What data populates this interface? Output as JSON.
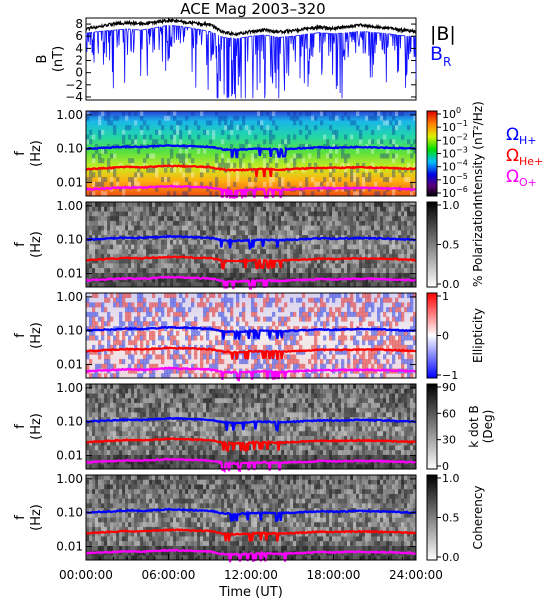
{
  "title": "ACE Mag 2003–320",
  "xaxis": {
    "label": "Time (UT)",
    "ticks": [
      "00:00:00",
      "06:00:00",
      "12:00:00",
      "18:00:00",
      "24:00:00"
    ],
    "range_hours": [
      0,
      24
    ]
  },
  "colors": {
    "b_total": "#000000",
    "b_r": "#1010ff",
    "h_plus": "#0000ff",
    "he_plus": "#ff0000",
    "o_plus": "#ff00ff"
  },
  "freq_ticks": [
    "1.00",
    "0.10",
    "0.01"
  ],
  "panels": {
    "bfield": {
      "ylabel": [
        "B",
        "(nT)"
      ],
      "yticks": [
        "8",
        "6",
        "4",
        "2",
        "0",
        "−2",
        "−4"
      ],
      "ylim": [
        -4.5,
        9
      ],
      "legend": {
        "b_total": "|B|",
        "b_r_main": "B",
        "b_r_sub": "R"
      }
    },
    "intensity": {
      "ylabel": [
        "f",
        "(Hz)"
      ],
      "cbar_label": "Intensity (nT²/Hz)",
      "cbar_ticks": [
        {
          "base": "10",
          "exp": "0"
        },
        {
          "base": "10",
          "exp": "−1"
        },
        {
          "base": "10",
          "exp": "−2"
        },
        {
          "base": "10",
          "exp": "−3"
        },
        {
          "base": "10",
          "exp": "−4"
        },
        {
          "base": "10",
          "exp": "−5"
        },
        {
          "base": "10",
          "exp": "−6"
        }
      ],
      "gyro_legend": [
        {
          "main": "Ω",
          "sub": "H+",
          "color": "#0000ff"
        },
        {
          "main": "Ω",
          "sub": "He+",
          "color": "#ff0000"
        },
        {
          "main": "Ω",
          "sub": "O+",
          "color": "#ff00ff"
        }
      ]
    },
    "polarization": {
      "cbar_label": "% Polarization",
      "cbar_ticks": [
        "1.0",
        "0.5",
        "0.0"
      ]
    },
    "ellipticity": {
      "cbar_label": "Ellipticity",
      "cbar_ticks": [
        "1",
        "0",
        "−1"
      ]
    },
    "kdotb": {
      "cbar_label": [
        "k dot B",
        "(Deg)"
      ],
      "cbar_ticks": [
        "90",
        "60",
        "30",
        "0"
      ]
    },
    "coherency": {
      "cbar_label": "Coherency",
      "cbar_ticks": [
        "1.0",
        "0.5",
        "0.0"
      ]
    }
  },
  "chart_data": [
    {
      "type": "line",
      "title": "ACE Mag 2003–320",
      "x_hours": [
        0,
        1,
        2,
        3,
        4,
        5,
        6,
        7,
        8,
        9,
        10,
        11,
        12,
        13,
        14,
        15,
        16,
        17,
        18,
        19,
        20,
        21,
        22,
        23,
        24
      ],
      "series": [
        {
          "name": "|B|",
          "values": [
            7.2,
            7.6,
            8.0,
            8.2,
            8.0,
            8.3,
            8.6,
            8.4,
            8.1,
            7.9,
            6.6,
            6.4,
            6.8,
            7.0,
            6.7,
            6.9,
            7.2,
            7.5,
            7.3,
            7.6,
            7.8,
            7.5,
            7.3,
            7.0,
            6.8
          ]
        },
        {
          "name": "B_R",
          "values": [
            6.5,
            6.8,
            7.0,
            7.2,
            7.0,
            7.4,
            7.8,
            7.6,
            7.2,
            6.8,
            5.8,
            5.6,
            6.0,
            6.2,
            5.8,
            6.0,
            6.3,
            6.6,
            6.4,
            6.6,
            6.8,
            6.6,
            6.4,
            6.1,
            5.9
          ]
        }
      ],
      "ylabel": "B (nT)",
      "ylim": [
        -4.5,
        9
      ]
    },
    {
      "type": "line",
      "x_hours": [
        0,
        1,
        2,
        3,
        4,
        5,
        6,
        7,
        8,
        9,
        10,
        11,
        12,
        13,
        14,
        15,
        16,
        17,
        18,
        19,
        20,
        21,
        22,
        23,
        24
      ],
      "series": [
        {
          "name": "Ω H+",
          "values": [
            0.1,
            0.105,
            0.11,
            0.115,
            0.112,
            0.118,
            0.125,
            0.122,
            0.118,
            0.114,
            0.095,
            0.092,
            0.098,
            0.1,
            0.096,
            0.1,
            0.104,
            0.11,
            0.107,
            0.11,
            0.113,
            0.11,
            0.107,
            0.103,
            0.1
          ]
        },
        {
          "name": "Ω He+",
          "values": [
            0.025,
            0.026,
            0.0275,
            0.029,
            0.028,
            0.0295,
            0.031,
            0.0305,
            0.0295,
            0.0285,
            0.024,
            0.023,
            0.0245,
            0.025,
            0.024,
            0.025,
            0.026,
            0.0275,
            0.027,
            0.0275,
            0.028,
            0.0275,
            0.027,
            0.026,
            0.025
          ]
        },
        {
          "name": "Ω O+",
          "values": [
            0.0063,
            0.0066,
            0.0069,
            0.0072,
            0.007,
            0.0074,
            0.0078,
            0.0076,
            0.0074,
            0.0071,
            0.006,
            0.0058,
            0.0061,
            0.0063,
            0.006,
            0.0063,
            0.0065,
            0.0069,
            0.0067,
            0.0069,
            0.007,
            0.0069,
            0.0067,
            0.0065,
            0.0063
          ]
        }
      ],
      "ylabel": "f (Hz)",
      "ylim": [
        0.004,
        1.3
      ],
      "yscale": "log"
    }
  ]
}
